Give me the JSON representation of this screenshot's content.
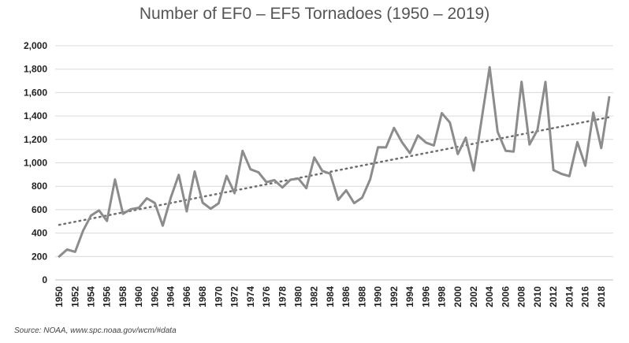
{
  "title": "Number of EF0 – EF5 Tornadoes (1950 – 2019)",
  "source": "Source: NOAA, www.spc.noaa.gov/wcm/#data",
  "colors": {
    "series": "#8c8c8c",
    "trend": "#6e6e6e",
    "grid": "#d9d9d9",
    "axis": "#bfbfbf"
  },
  "chart_data": {
    "type": "line",
    "title": "Number of EF0 – EF5 Tornadoes (1950 – 2019)",
    "xlabel": "",
    "ylabel": "",
    "ylim": [
      0,
      2000
    ],
    "grid": true,
    "legend": "none",
    "y_ticks": [
      "0",
      "200",
      "400",
      "600",
      "800",
      "1,000",
      "1,200",
      "1,400",
      "1,600",
      "1,800",
      "2,000"
    ],
    "x_ticks": [
      "1950",
      "1952",
      "1954",
      "1956",
      "1958",
      "1960",
      "1962",
      "1964",
      "1966",
      "1968",
      "1970",
      "1972",
      "1974",
      "1976",
      "1978",
      "1980",
      "1982",
      "1984",
      "1986",
      "1988",
      "1990",
      "1992",
      "1994",
      "1996",
      "1998",
      "2000",
      "2002",
      "2004",
      "2006",
      "2008",
      "2010",
      "2012",
      "2014",
      "2016",
      "2018"
    ],
    "x": [
      1950,
      1951,
      1952,
      1953,
      1954,
      1955,
      1956,
      1957,
      1958,
      1959,
      1960,
      1961,
      1962,
      1963,
      1964,
      1965,
      1966,
      1967,
      1968,
      1969,
      1970,
      1971,
      1972,
      1973,
      1974,
      1975,
      1976,
      1977,
      1978,
      1979,
      1980,
      1981,
      1982,
      1983,
      1984,
      1985,
      1986,
      1987,
      1988,
      1989,
      1990,
      1991,
      1992,
      1993,
      1994,
      1995,
      1996,
      1997,
      1998,
      1999,
      2000,
      2001,
      2002,
      2003,
      2004,
      2005,
      2006,
      2007,
      2008,
      2009,
      2010,
      2011,
      2012,
      2013,
      2014,
      2015,
      2016,
      2017,
      2018,
      2019
    ],
    "series": [
      {
        "values": [
          201,
          260,
          240,
          420,
          550,
          593,
          504,
          858,
          564,
          604,
          616,
          697,
          657,
          463,
          704,
          897,
          585,
          926,
          660,
          608,
          654,
          888,
          741,
          1102,
          945,
          919,
          835,
          852,
          789,
          855,
          866,
          783,
          1046,
          931,
          907,
          684,
          765,
          656,
          702,
          856,
          1133,
          1132,
          1298,
          1176,
          1082,
          1234,
          1173,
          1148,
          1424,
          1345,
          1075,
          1215,
          934,
          1374,
          1817,
          1265,
          1103,
          1096,
          1692,
          1156,
          1282,
          1691,
          938,
          906,
          886,
          1177,
          975,
          1429,
          1126,
          1560
        ]
      }
    ],
    "trend": {
      "type": "linear",
      "start": 470,
      "end": 1390
    }
  }
}
